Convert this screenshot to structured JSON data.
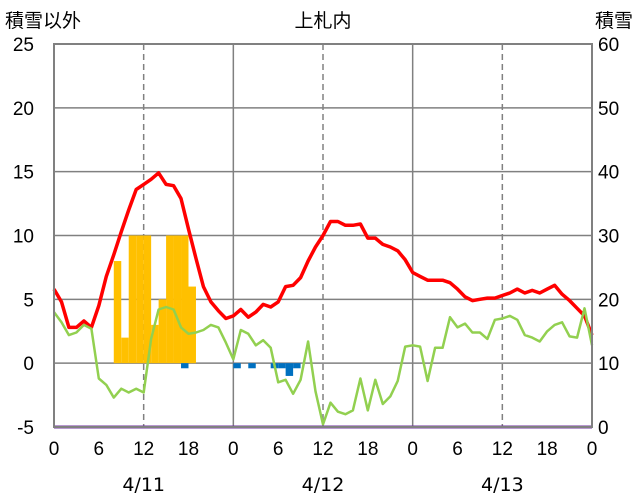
{
  "chart_data": {
    "type": "line",
    "title": "上札内",
    "left_axis_label": "積雪以外",
    "right_axis_label": "積雪",
    "left_ylim": [
      -5,
      25
    ],
    "left_yticks": [
      "25",
      "20",
      "15",
      "10",
      "5",
      "0",
      "-5"
    ],
    "right_ylim": [
      0,
      60
    ],
    "right_yticks": [
      "60",
      "50",
      "40",
      "30",
      "20",
      "10",
      "0"
    ],
    "xlim": [
      0,
      72
    ],
    "x_tick_labels": [
      "0",
      "6",
      "12",
      "18",
      "0",
      "6",
      "12",
      "18",
      "0",
      "6",
      "12",
      "18",
      "0"
    ],
    "date_labels": [
      {
        "x": 12,
        "label": "4/11"
      },
      {
        "x": 36,
        "label": "4/12"
      },
      {
        "x": 60,
        "label": "4/13"
      }
    ],
    "solid_grid_x": [
      24,
      48
    ],
    "dashed_grid_x": [
      12,
      36,
      60
    ],
    "colors": {
      "temperature": "#ff0000",
      "humidity_line": "#92d050",
      "precip": "#ffc000",
      "snow_change": "#0070c0",
      "snow_depth": "#7030a0",
      "frame": "#808080"
    },
    "series": [
      {
        "key": "temperature",
        "axis": "left",
        "x": [
          0,
          1,
          2,
          3,
          4,
          5,
          6,
          7,
          8,
          9,
          10,
          11,
          12,
          13,
          14,
          15,
          16,
          17,
          18,
          19,
          20,
          21,
          22,
          23,
          24,
          25,
          26,
          27,
          28,
          29,
          30,
          31,
          32,
          33,
          34,
          35,
          36,
          37,
          38,
          39,
          40,
          41,
          42,
          43,
          44,
          45,
          46,
          47,
          48,
          49,
          50,
          51,
          52,
          53,
          54,
          55,
          56,
          57,
          58,
          59,
          60,
          61,
          62,
          63,
          64,
          65,
          66,
          67,
          68,
          69,
          70,
          71,
          72
        ],
        "values": [
          5.8,
          4.8,
          2.8,
          2.8,
          3.3,
          2.8,
          4.5,
          6.8,
          8.5,
          10.3,
          12,
          13.6,
          14,
          14.4,
          14.9,
          14,
          13.9,
          12.9,
          10.5,
          8.2,
          6,
          4.8,
          4.1,
          3.5,
          3.7,
          4.2,
          3.6,
          4,
          4.6,
          4.4,
          4.8,
          6,
          6.1,
          6.7,
          8,
          9.1,
          10,
          11.1,
          11.1,
          10.8,
          10.8,
          10.9,
          9.8,
          9.8,
          9.3,
          9.1,
          8.8,
          8.1,
          7.1,
          6.8,
          6.5,
          6.5,
          6.5,
          6.3,
          5.8,
          5.2,
          4.9,
          5,
          5.1,
          5.1,
          5.3,
          5.5,
          5.8,
          5.5,
          5.7,
          5.5,
          5.8,
          6.1,
          5.4,
          4.9,
          4.3,
          3.7,
          2.2
        ]
      },
      {
        "key": "humidity_line",
        "axis": "left",
        "x": [
          0,
          1,
          2,
          3,
          4,
          5,
          6,
          7,
          8,
          9,
          10,
          11,
          12,
          13,
          14,
          15,
          16,
          17,
          18,
          19,
          20,
          21,
          22,
          23,
          24,
          25,
          26,
          27,
          28,
          29,
          30,
          31,
          32,
          33,
          34,
          35,
          36,
          37,
          38,
          39,
          40,
          41,
          42,
          43,
          44,
          45,
          46,
          47,
          48,
          49,
          50,
          51,
          52,
          53,
          54,
          55,
          56,
          57,
          58,
          59,
          60,
          61,
          62,
          63,
          64,
          65,
          66,
          67,
          68,
          69,
          70,
          71,
          72
        ],
        "values": [
          4,
          3.2,
          2.2,
          2.4,
          3,
          2.7,
          -1.2,
          -1.7,
          -2.7,
          -2,
          -2.3,
          -2,
          -2.3,
          1.9,
          4.2,
          4.4,
          4.2,
          2.8,
          2.3,
          2.4,
          2.6,
          3,
          2.8,
          1.6,
          0.3,
          2.6,
          2.3,
          1.4,
          1.8,
          1.2,
          -1.5,
          -1.3,
          -2.4,
          -1.3,
          1.7,
          -2.2,
          -4.8,
          -3.1,
          -3.8,
          -4,
          -3.7,
          -1.2,
          -3.7,
          -1.3,
          -3.2,
          -2.6,
          -1.4,
          1.3,
          1.4,
          1.3,
          -1.4,
          1.2,
          1.2,
          3.6,
          2.8,
          3.1,
          2.4,
          2.4,
          1.9,
          3.4,
          3.5,
          3.7,
          3.4,
          2.2,
          2,
          1.7,
          2.5,
          3,
          3.2,
          2.1,
          2,
          4.3,
          1.4
        ]
      },
      {
        "key": "snow_depth",
        "axis": "right",
        "x": [
          0,
          72
        ],
        "values": [
          0,
          0
        ]
      }
    ],
    "bars": [
      {
        "key": "precip",
        "axis": "left",
        "x": [
          8,
          9,
          10,
          11,
          12,
          13,
          14,
          15,
          16,
          17,
          18
        ],
        "values": [
          8,
          2,
          10,
          10,
          10,
          3,
          5,
          10,
          10,
          10,
          6
        ]
      },
      {
        "key": "snow_change",
        "axis": "left",
        "x": [
          17,
          24,
          26,
          29,
          30,
          31,
          32
        ],
        "values": [
          -0.4,
          -0.4,
          -0.4,
          -0.4,
          -0.4,
          -1,
          -0.4
        ]
      }
    ]
  }
}
